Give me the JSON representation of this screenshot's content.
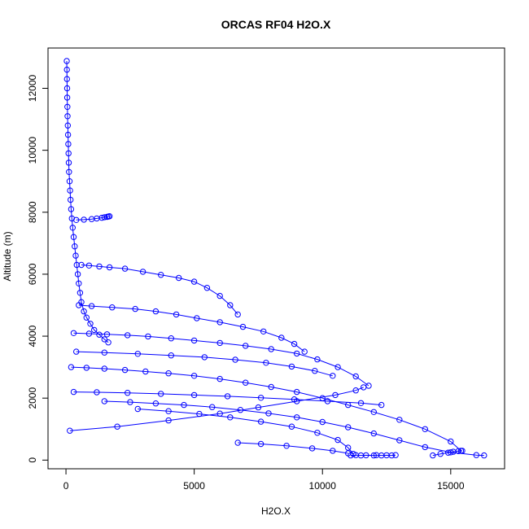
{
  "chart_data": {
    "type": "line",
    "title": "ORCAS RF04 H2O.X",
    "xlabel": "H2O.X",
    "ylabel": "Altitude (m)",
    "xlim": [
      -700,
      17100
    ],
    "ylim": [
      -280,
      13300
    ],
    "x_ticks": [
      0,
      5000,
      10000,
      15000
    ],
    "x_tick_labels": [
      "0",
      "5000",
      "10000",
      "15000"
    ],
    "y_ticks": [
      0,
      2000,
      4000,
      6000,
      8000,
      10000,
      12000
    ],
    "y_tick_labels": [
      "0",
      "2000",
      "4000",
      "6000",
      "8000",
      "10000",
      "12000"
    ],
    "grid": false,
    "legend": "none",
    "series_color": "#0000ff",
    "marker": "open-circle",
    "series": [
      {
        "x": [
          30,
          35,
          40,
          45,
          50,
          55,
          60,
          70,
          80,
          90,
          100,
          110,
          120,
          140,
          160,
          180,
          200,
          230,
          260,
          300,
          340,
          380,
          420,
          460,
          500,
          550,
          600,
          700,
          800,
          950,
          1100,
          1300,
          1500,
          1650
        ],
        "y": [
          12880,
          12600,
          12300,
          12000,
          11700,
          11400,
          11100,
          10800,
          10500,
          10200,
          9900,
          9600,
          9300,
          9000,
          8700,
          8400,
          8100,
          7800,
          7500,
          7200,
          6900,
          6600,
          6300,
          6000,
          5700,
          5400,
          5100,
          4800,
          4600,
          4400,
          4200,
          4050,
          3900,
          3800
        ]
      },
      {
        "x": [
          400,
          700,
          1000,
          1200,
          1400,
          1500,
          1600,
          1650,
          1700
        ],
        "y": [
          7750,
          7760,
          7780,
          7800,
          7820,
          7840,
          7850,
          7860,
          7870
        ]
      },
      {
        "x": [
          600,
          900,
          1300,
          1700,
          2300,
          3000,
          3700,
          4400,
          5000,
          5500,
          6000,
          6400,
          6700
        ],
        "y": [
          6300,
          6280,
          6250,
          6220,
          6180,
          6080,
          5980,
          5880,
          5760,
          5560,
          5300,
          5000,
          4700
        ]
      },
      {
        "x": [
          500,
          1000,
          1800,
          2700,
          3500,
          4300,
          5100,
          6000,
          6900,
          7700,
          8400,
          8900,
          9300
        ],
        "y": [
          5000,
          4970,
          4930,
          4880,
          4800,
          4700,
          4580,
          4450,
          4300,
          4150,
          3950,
          3750,
          3500
        ]
      },
      {
        "x": [
          300,
          900,
          1600,
          2400,
          3200,
          4100,
          5000,
          6000,
          7000,
          8000,
          9000,
          9800,
          10600,
          11300,
          11800
        ],
        "y": [
          4100,
          4080,
          4060,
          4030,
          3990,
          3930,
          3860,
          3780,
          3690,
          3580,
          3440,
          3250,
          3000,
          2700,
          2400
        ]
      },
      {
        "x": [
          200,
          800,
          1500,
          2300,
          3100,
          4000,
          5000,
          6000,
          7000,
          8000,
          9000,
          10000,
          11000,
          12000,
          13000,
          14000,
          15000,
          15400
        ],
        "y": [
          3000,
          2980,
          2950,
          2910,
          2860,
          2800,
          2720,
          2620,
          2500,
          2360,
          2200,
          2000,
          1780,
          1550,
          1300,
          1000,
          600,
          300
        ]
      },
      {
        "x": [
          150,
          2000,
          4000,
          6000,
          7500,
          9000,
          10500,
          11300,
          11600
        ],
        "y": [
          950,
          1080,
          1280,
          1500,
          1700,
          1900,
          2100,
          2250,
          2350
        ]
      },
      {
        "x": [
          1500,
          2500,
          3500,
          4600,
          5700,
          6800,
          7900,
          9000,
          10000,
          11000,
          12000,
          13000,
          14000,
          15000,
          16000,
          16300
        ],
        "y": [
          1900,
          1870,
          1830,
          1780,
          1710,
          1620,
          1510,
          1380,
          1230,
          1060,
          860,
          640,
          420,
          250,
          160,
          150
        ]
      },
      {
        "x": [
          2800,
          4000,
          5200,
          6400,
          7600,
          8800,
          9800,
          10600,
          11000,
          11200
        ],
        "y": [
          1650,
          1580,
          1490,
          1380,
          1240,
          1080,
          880,
          650,
          400,
          200
        ]
      },
      {
        "x": [
          6700,
          7600,
          8600,
          9600,
          10400,
          11000
        ],
        "y": [
          560,
          520,
          460,
          380,
          300,
          220
        ]
      },
      {
        "x": [
          11100,
          11300,
          11500,
          11700,
          12000,
          12100,
          12300,
          12500,
          12700,
          12850
        ],
        "y": [
          150,
          160,
          150,
          155,
          150,
          160,
          150,
          155,
          150,
          160
        ]
      },
      {
        "x": [
          14300,
          14600,
          14900,
          15100,
          15300,
          15450
        ],
        "y": [
          150,
          200,
          240,
          270,
          290,
          300
        ]
      },
      {
        "x": [
          300,
          1200,
          2400,
          3700,
          5000,
          6300,
          7600,
          8900,
          10200,
          11500,
          12300
        ],
        "y": [
          2200,
          2190,
          2170,
          2140,
          2100,
          2060,
          2010,
          1960,
          1900,
          1840,
          1780
        ]
      },
      {
        "x": [
          400,
          1500,
          2800,
          4100,
          5400,
          6600,
          7800,
          8800,
          9700,
          10400
        ],
        "y": [
          3500,
          3470,
          3430,
          3380,
          3320,
          3240,
          3140,
          3020,
          2880,
          2720
        ]
      }
    ]
  }
}
